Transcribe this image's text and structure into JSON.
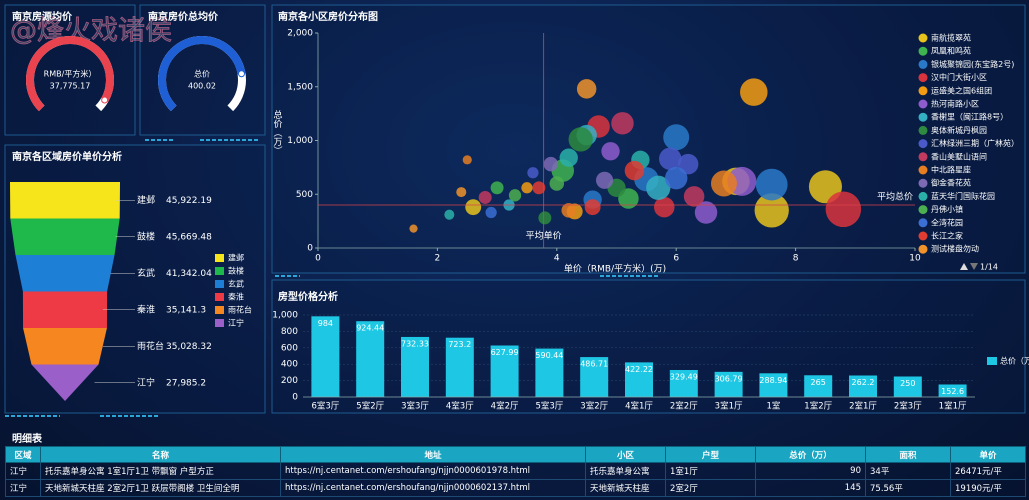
{
  "watermark": "@烽火戏诸侯",
  "chart_data": [
    {
      "type": "gauge",
      "title": "南京房源均价",
      "label": "RMB/平方米）",
      "values": [
        37775.17
      ],
      "value_labels": [
        "37,775.17"
      ],
      "color": "#e8434f",
      "lim": [
        0,
        40000
      ]
    },
    {
      "type": "gauge",
      "title": "南京房价总均价",
      "label": "总价",
      "values": [
        400.02
      ],
      "color": "#1f5fd6",
      "lim": [
        0,
        500
      ]
    },
    {
      "type": "funnel",
      "title": "南京各区域房价单价分析",
      "categories": [
        "建邺",
        "鼓楼",
        "玄武",
        "秦淮",
        "雨花台",
        "江宁"
      ],
      "values": [
        45922.19,
        45669.48,
        41342.04,
        35141.3,
        35028.32,
        27985.2
      ],
      "value_labels": [
        "45,922.19",
        "45,669.48",
        "41,342.04",
        "35,141.3",
        "35,028.32",
        "27,985.2"
      ],
      "colors": [
        "#f7e51c",
        "#1fb84a",
        "#1e7fd6",
        "#ee3a45",
        "#f6861f",
        "#9b5fc9"
      ]
    },
    {
      "type": "scatter",
      "title": "南京各小区房价分布图",
      "xlabel": "单价（RMB/平方米）(万)",
      "ylabel": "总价（万）",
      "xlim": [
        0,
        10
      ],
      "xticks": [
        0,
        2,
        4,
        6,
        8,
        10
      ],
      "ylim": [
        0,
        2000
      ],
      "yticks": [
        0,
        500,
        {
          "value": 1000,
          "label": "1,000"
        },
        {
          "value": 1500,
          "label": "1,500"
        },
        {
          "value": 2000,
          "label": "2,000"
        }
      ],
      "mark_lines": [
        {
          "label": "平均单价",
          "axis": "x",
          "value": 3.78
        },
        {
          "label": "平均总价",
          "axis": "y",
          "value": 400.02
        }
      ],
      "legend_page": "1/14",
      "series": [
        {
          "name": "南航揽翠苑",
          "color": "#e8c31c",
          "x": [
            7.6,
            8.5,
            7.0,
            2.6
          ],
          "values": [
            350,
            570,
            620,
            380
          ],
          "sizes": [
            140,
            130,
            90,
            30
          ]
        },
        {
          "name": "凤凰和鸣苑",
          "color": "#3fb34f",
          "x": [
            4.1,
            3.0,
            5.2
          ],
          "values": [
            720,
            560,
            460
          ],
          "sizes": [
            60,
            20,
            50
          ]
        },
        {
          "name": "银城聚锦园(东宝路2号)",
          "color": "#2a79c9",
          "x": [
            6.0,
            5.5,
            7.6,
            4.6
          ],
          "values": [
            1030,
            640,
            590,
            450
          ],
          "sizes": [
            80,
            70,
            120,
            40
          ]
        },
        {
          "name": "汉中门大街小区",
          "color": "#d9343e",
          "x": [
            4.7,
            8.8,
            5.8
          ],
          "values": [
            1130,
            360,
            380
          ],
          "sizes": [
            60,
            150,
            50
          ]
        },
        {
          "name": "运盛美之国6组团",
          "color": "#f39c12",
          "x": [
            7.3,
            4.3,
            3.5
          ],
          "values": [
            1450,
            340,
            560
          ],
          "sizes": [
            90,
            30,
            15
          ]
        },
        {
          "name": "热河南路小区",
          "color": "#8e5ccc",
          "x": [
            6.5,
            7.1,
            4.9
          ],
          "values": [
            330,
            620,
            900
          ],
          "sizes": [
            60,
            100,
            40
          ]
        },
        {
          "name": "香榭里（闽江路8号）",
          "color": "#35b0c3",
          "x": [
            5.7,
            4.5,
            3.2
          ],
          "values": [
            560,
            1050,
            400
          ],
          "sizes": [
            70,
            50,
            15
          ]
        },
        {
          "name": "奥体新城丹枫园",
          "color": "#2d8a3e",
          "x": [
            4.4,
            5.0,
            3.8
          ],
          "values": [
            1010,
            560,
            280
          ],
          "sizes": [
            70,
            40,
            20
          ]
        },
        {
          "name": "汇林绿洲三期（广林苑）",
          "color": "#4a5ac9",
          "x": [
            5.9,
            6.2,
            3.6
          ],
          "values": [
            830,
            780,
            700
          ],
          "sizes": [
            60,
            50,
            15
          ]
        },
        {
          "name": "香山美墅山语间",
          "color": "#c33a5f",
          "x": [
            5.1,
            6.3,
            2.8
          ],
          "values": [
            1160,
            480,
            470
          ],
          "sizes": [
            60,
            50,
            20
          ]
        },
        {
          "name": "中北路星座",
          "color": "#e67e22",
          "x": [
            6.8,
            2.5,
            4.2
          ],
          "values": [
            600,
            820,
            350
          ],
          "sizes": [
            80,
            10,
            25
          ]
        },
        {
          "name": "御金香花苑",
          "color": "#7d6ab5",
          "x": [
            3.9,
            4.8
          ],
          "values": [
            780,
            630
          ],
          "sizes": [
            25,
            35
          ]
        },
        {
          "name": "蓝天华门国际花园",
          "color": "#2ab0a8",
          "x": [
            4.2,
            5.4,
            2.2
          ],
          "values": [
            840,
            820,
            310
          ],
          "sizes": [
            40,
            40,
            12
          ]
        },
        {
          "name": "丹佛小镇",
          "color": "#4caf50",
          "x": [
            3.3,
            4.0
          ],
          "values": [
            490,
            600
          ],
          "sizes": [
            18,
            25
          ]
        },
        {
          "name": "全湾花园",
          "color": "#3b6fd4",
          "x": [
            6.0,
            2.9
          ],
          "values": [
            650,
            330
          ],
          "sizes": [
            60,
            15
          ]
        },
        {
          "name": "长江之家",
          "color": "#e03c31",
          "x": [
            4.6,
            3.7,
            5.3
          ],
          "values": [
            380,
            560,
            720
          ],
          "sizes": [
            30,
            20,
            45
          ]
        },
        {
          "name": "测试楼盘勿动",
          "color": "#f0932b",
          "x": [
            2.4,
            1.6,
            4.5
          ],
          "values": [
            520,
            180,
            1480
          ],
          "sizes": [
            12,
            8,
            45
          ]
        }
      ]
    },
    {
      "type": "bar",
      "title": "房型价格分析",
      "categories": [
        "6室3厅",
        "5室2厅",
        "3室3厅",
        "4室3厅",
        "4室2厅",
        "5室3厅",
        "3室2厅",
        "4室1厅",
        "2室2厅",
        "3室1厅",
        "1室",
        "1室2厅",
        "2室1厅",
        "2室3厅",
        "1室1厅"
      ],
      "ylim": [
        0,
        1000
      ],
      "yticks": [
        0,
        200,
        400,
        600,
        800,
        {
          "value": 1000,
          "label": "1,000"
        }
      ],
      "series": [
        {
          "name": "总价（万）",
          "color": "#1ec8e4",
          "values": [
            984,
            924.44,
            732.33,
            723.2,
            627.99,
            590.44,
            486.71,
            422.22,
            329.49,
            306.79,
            288.94,
            265,
            262.2,
            250,
            152.6
          ]
        }
      ]
    }
  ],
  "table": {
    "title": "明细表",
    "columns": [
      "区域",
      "名称",
      "地址",
      "小区",
      "户型",
      "总价（万）",
      "面积",
      "单价"
    ],
    "rows": [
      [
        "江宁",
        "托乐嘉单身公寓 1室1厅1卫 带飘窗 户型方正",
        "https://nj.centanet.com/ershoufang/njjn0000601978.html",
        "托乐嘉单身公寓",
        "1室1厅",
        90,
        "34平",
        "26471元/平"
      ],
      [
        "江宁",
        "天地新城天柱座 2室2厅1卫 跃层带阁楼 卫生间全明",
        "https://nj.centanet.com/ershoufang/njjn0000602137.html",
        "天地新城天柱座",
        "2室2厅",
        145,
        "75.56平",
        "19190元/平"
      ]
    ]
  }
}
